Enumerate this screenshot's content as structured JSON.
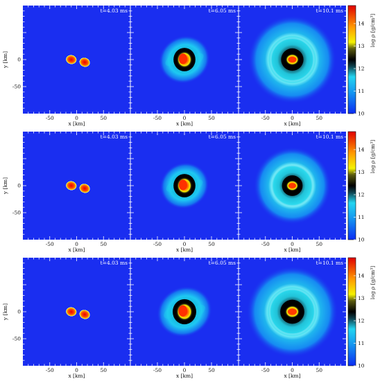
{
  "chart_data": {
    "type": "heatmap",
    "layout": {
      "rows": 3,
      "columns": 3
    },
    "xlabel": "x [km]",
    "ylabel": "y [km]",
    "x_ticks": [
      -50,
      0,
      50
    ],
    "y_ticks": [
      0,
      -50
    ],
    "xlim": [
      -100,
      100
    ],
    "ylim": [
      -100,
      100
    ],
    "colorbar": {
      "label": "log ρ [g/cm³]",
      "range": [
        10,
        14.8
      ],
      "ticks": [
        10,
        11,
        12,
        13,
        14
      ],
      "colors": [
        "#0b2cf2",
        "#19c8f0",
        "#000000",
        "#f7f700",
        "#ff7a00",
        "#e60000"
      ]
    },
    "background_color": "#1a2ef0",
    "rows": [
      {
        "panels": [
          {
            "time": "t=4.03 ms",
            "snapshot": "binary",
            "star1_center_km": [
              -10,
              0
            ],
            "star2_center_km": [
              15,
              -5
            ],
            "star_radius_km": 10,
            "halo_radius_km": 0
          },
          {
            "time": "t=6.05 ms",
            "snapshot": "merger",
            "core_radius_km": 14,
            "halo_radius_km": 48,
            "asymmetry": 0.35
          },
          {
            "time": "t=10.1 ms",
            "snapshot": "remnant",
            "core_radius_km": 13,
            "ring_radius_km": 40,
            "halo_radius_km": 82
          }
        ]
      },
      {
        "panels": [
          {
            "time": "t=4.03 ms",
            "snapshot": "binary",
            "star1_center_km": [
              -10,
              0
            ],
            "star2_center_km": [
              15,
              -5
            ],
            "star_radius_km": 10,
            "halo_radius_km": 0
          },
          {
            "time": "t=6.05 ms",
            "snapshot": "merger",
            "core_radius_km": 14,
            "halo_radius_km": 46,
            "asymmetry": 0.3
          },
          {
            "time": "t=10.1 ms",
            "snapshot": "remnant",
            "core_radius_km": 12,
            "ring_radius_km": 38,
            "halo_radius_km": 72
          }
        ]
      },
      {
        "panels": [
          {
            "time": "t=4.03 ms",
            "snapshot": "binary",
            "star1_center_km": [
              -10,
              0
            ],
            "star2_center_km": [
              15,
              -5
            ],
            "star_radius_km": 10,
            "halo_radius_km": 0
          },
          {
            "time": "t=6.05 ms",
            "snapshot": "merger",
            "core_radius_km": 15,
            "halo_radius_km": 52,
            "asymmetry": 0.45
          },
          {
            "time": "t=10.1 ms",
            "snapshot": "remnant",
            "core_radius_km": 14,
            "ring_radius_km": 42,
            "halo_radius_km": 85
          }
        ]
      }
    ]
  }
}
